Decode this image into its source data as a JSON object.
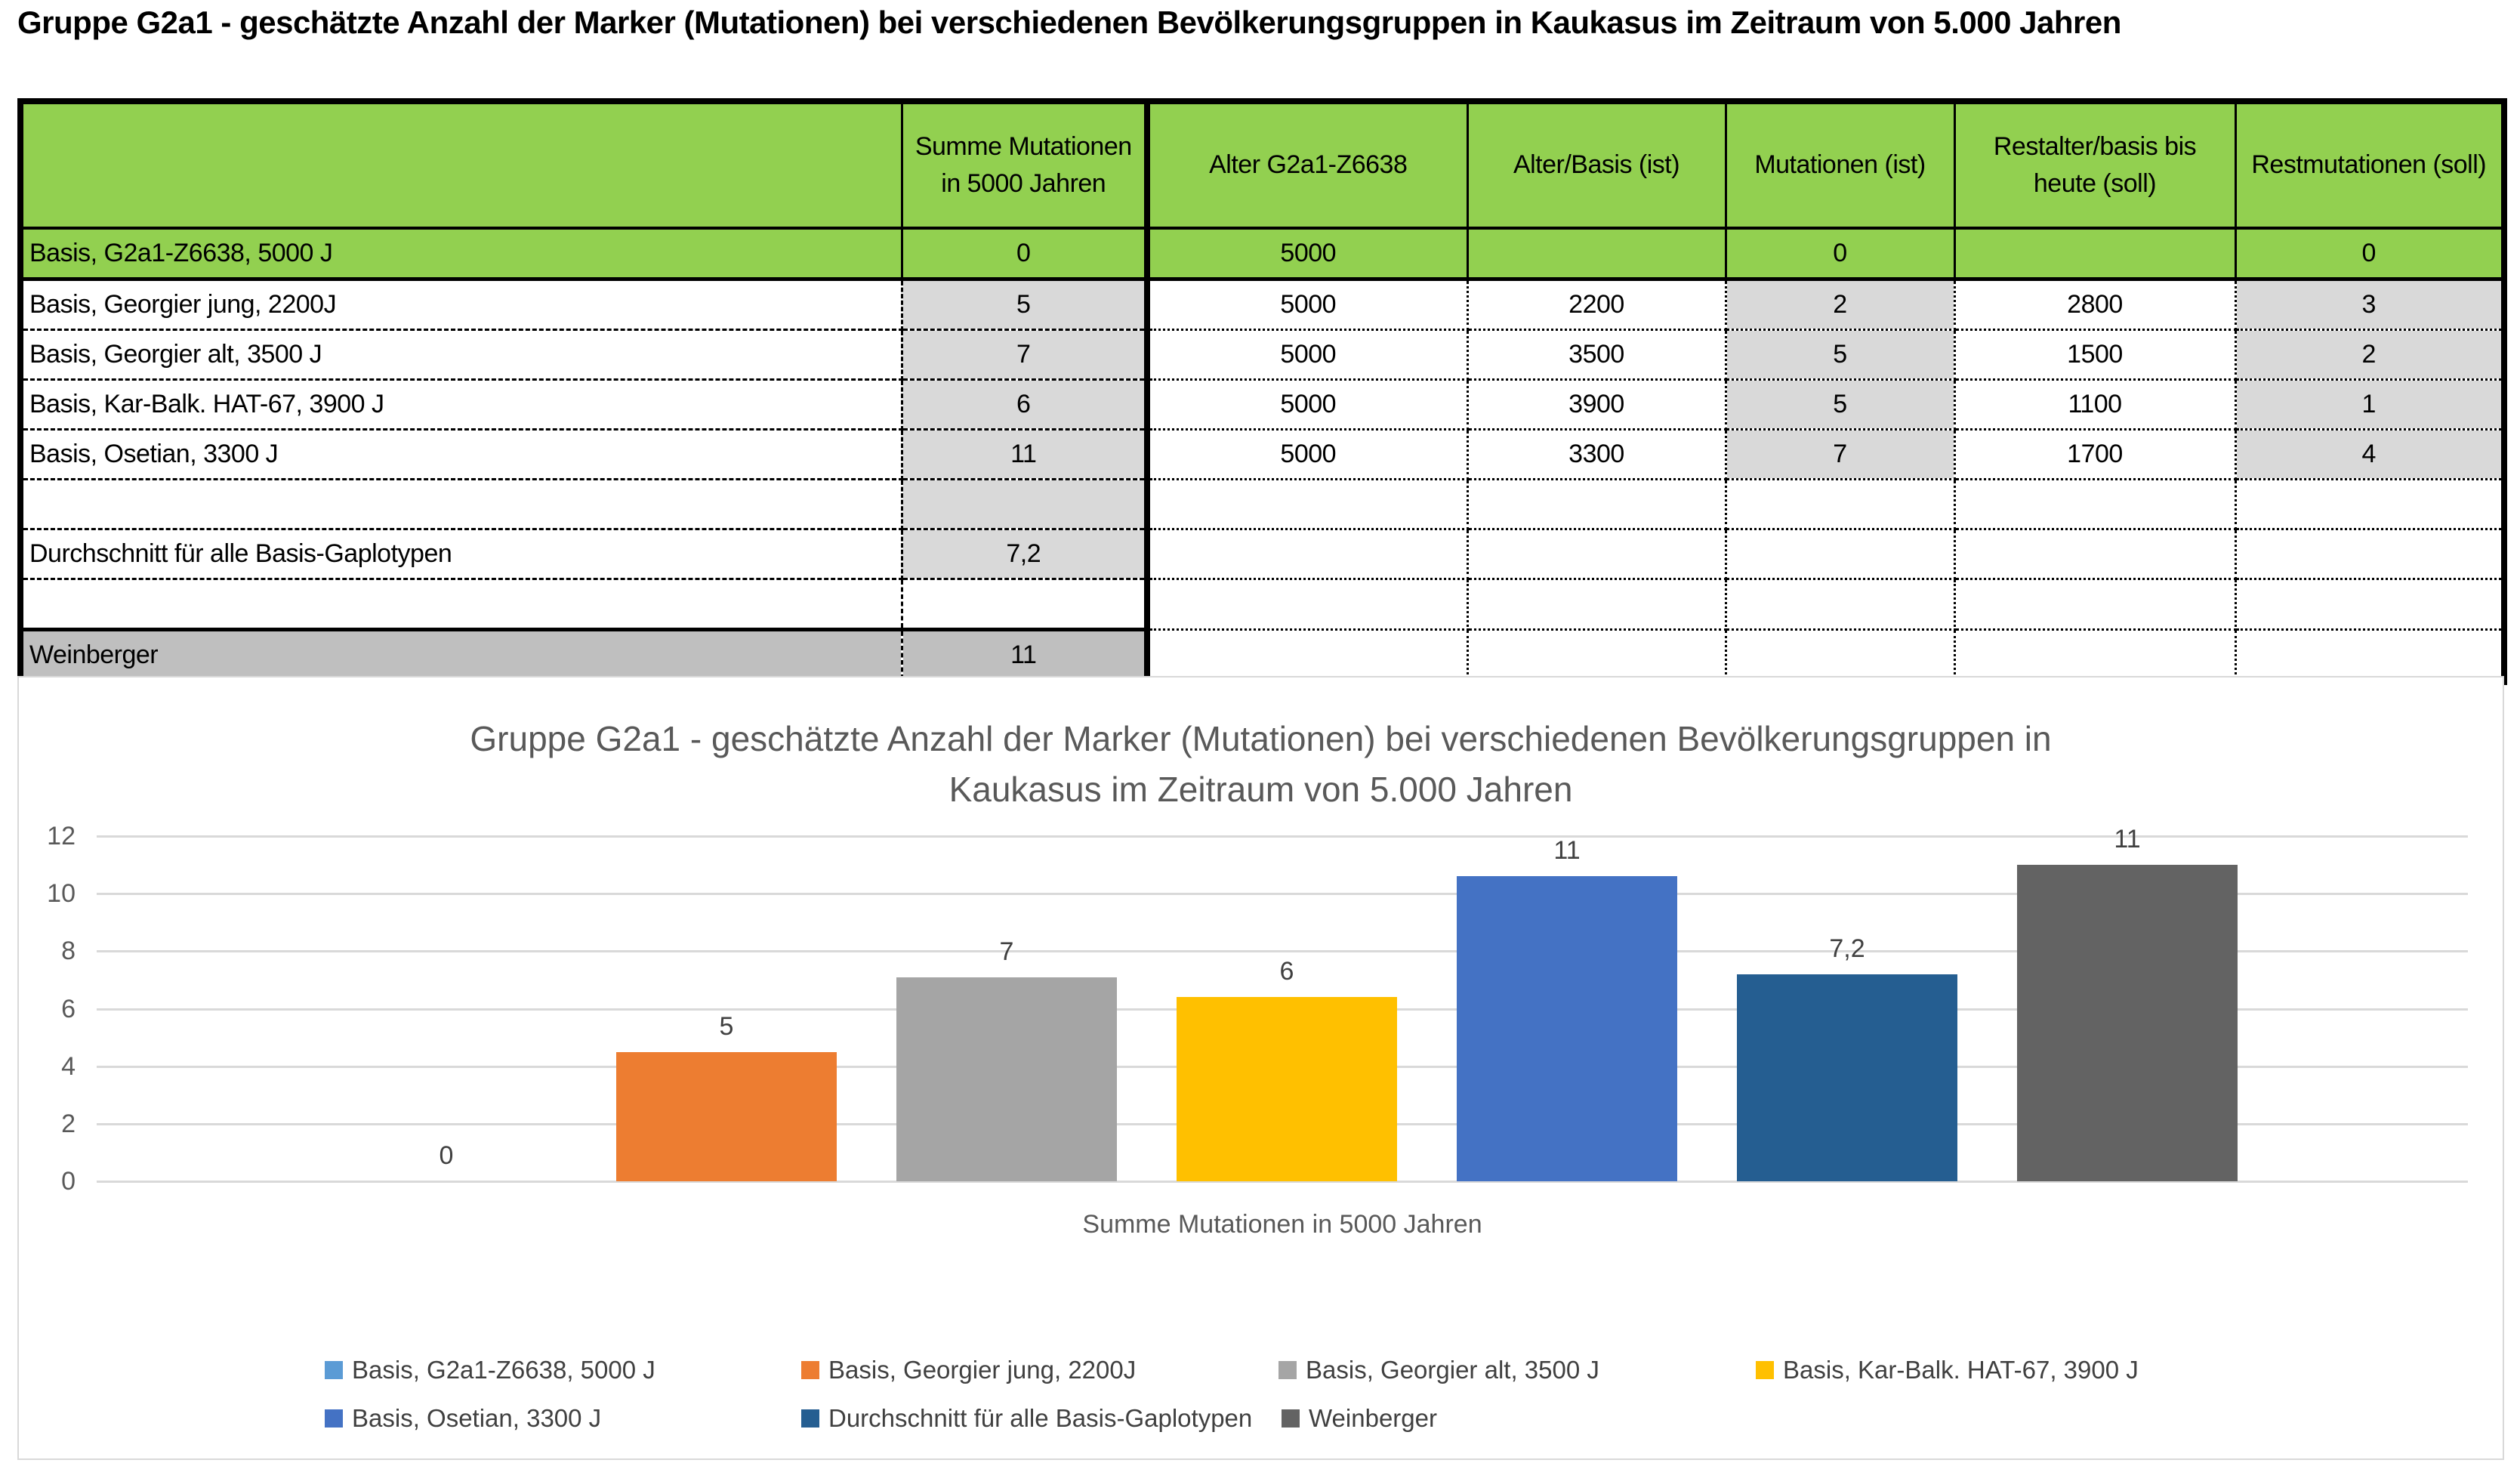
{
  "page_title": "Gruppe G2a1 - geschätzte Anzahl der Marker (Mutationen) bei verschiedenen Bevölkerungsgruppen in Kaukasus im Zeitraum von 5.000 Jahren",
  "colors": {
    "header_green": "#92D050",
    "cell_gray_light": "#D9D9D9",
    "cell_gray_medium": "#BFBFBF",
    "grid": "#D9D9D9",
    "axis_text": "#595959",
    "label_text": "#404040"
  },
  "table": {
    "headers": [
      "",
      "Summe Mutationen in 5000 Jahren",
      "Alter G2a1-Z6638",
      "Alter/Basis (ist)",
      "Mutationen (ist)",
      "Restalter/basis bis heute (soll)",
      "Restmutationen (soll)"
    ],
    "rows": [
      {
        "variant": "green",
        "gray_cols": [],
        "cells": [
          "Basis, G2a1-Z6638,  5000 J",
          "0",
          "5000",
          "",
          "0",
          "",
          "0"
        ]
      },
      {
        "variant": "normal",
        "gray_cols": [
          1,
          4,
          6
        ],
        "cells": [
          "Basis, Georgier jung, 2200J",
          "5",
          "5000",
          "2200",
          "2",
          "2800",
          "3"
        ]
      },
      {
        "variant": "normal",
        "gray_cols": [
          1,
          4,
          6
        ],
        "cells": [
          "Basis, Georgier alt, 3500 J",
          "7",
          "5000",
          "3500",
          "5",
          "1500",
          "2"
        ]
      },
      {
        "variant": "normal",
        "gray_cols": [
          1,
          4,
          6
        ],
        "cells": [
          "Basis, Kar-Balk. HAT-67, 3900 J",
          "6",
          "5000",
          "3900",
          "5",
          "1100",
          "1"
        ]
      },
      {
        "variant": "normal",
        "gray_cols": [
          1,
          4,
          6
        ],
        "cells": [
          "Basis, Osetian, 3300 J",
          "11",
          "5000",
          "3300",
          "7",
          "1700",
          "4"
        ]
      },
      {
        "variant": "normal",
        "gray_cols": [
          1
        ],
        "cells": [
          "",
          "",
          "",
          "",
          "",
          "",
          ""
        ]
      },
      {
        "variant": "normal",
        "gray_cols": [
          1
        ],
        "cells": [
          "Durchschnitt für alle Basis-Gaplotypen",
          "7,2",
          "",
          "",
          "",
          "",
          ""
        ]
      },
      {
        "variant": "normal",
        "gray_cols": [],
        "cells": [
          "",
          "",
          "",
          "",
          "",
          "",
          ""
        ]
      },
      {
        "variant": "weinberger",
        "gray_cols": [],
        "cells": [
          "Weinberger",
          "11",
          "",
          "",
          "",
          "",
          ""
        ]
      }
    ]
  },
  "chart_data": {
    "type": "bar",
    "title_line1": "Gruppe G2a1 - geschätzte Anzahl der Marker (Mutationen) bei verschiedenen Bevölkerungsgruppen in",
    "title_line2": "Kaukasus im Zeitraum von 5.000 Jahren",
    "xlabel": "Summe Mutationen in 5000 Jahren",
    "ylabel": "",
    "ylim": [
      0,
      12
    ],
    "y_ticks": [
      0,
      2,
      4,
      6,
      8,
      10,
      12
    ],
    "grid": true,
    "legend_position": "bottom",
    "categories": [
      "Basis, G2a1-Z6638,  5000 J",
      "Basis, Georgier jung, 2200J",
      "Basis, Georgier alt, 3500 J",
      "Basis, Kar-Balk. HAT-67, 3900 J",
      "Basis, Osetian, 3300 J",
      "Durchschnitt für alle Basis-Gaplotypen",
      "Weinberger"
    ],
    "values": [
      0,
      4.5,
      7.1,
      6.4,
      10.6,
      7.2,
      11
    ],
    "data_labels": [
      "0",
      "5",
      "7",
      "6",
      "11",
      "7,2",
      "11"
    ],
    "series_colors": [
      "#5B9BD5",
      "#ED7D31",
      "#A5A5A5",
      "#FFC000",
      "#4472C4",
      "#255E91",
      "#636363"
    ]
  }
}
